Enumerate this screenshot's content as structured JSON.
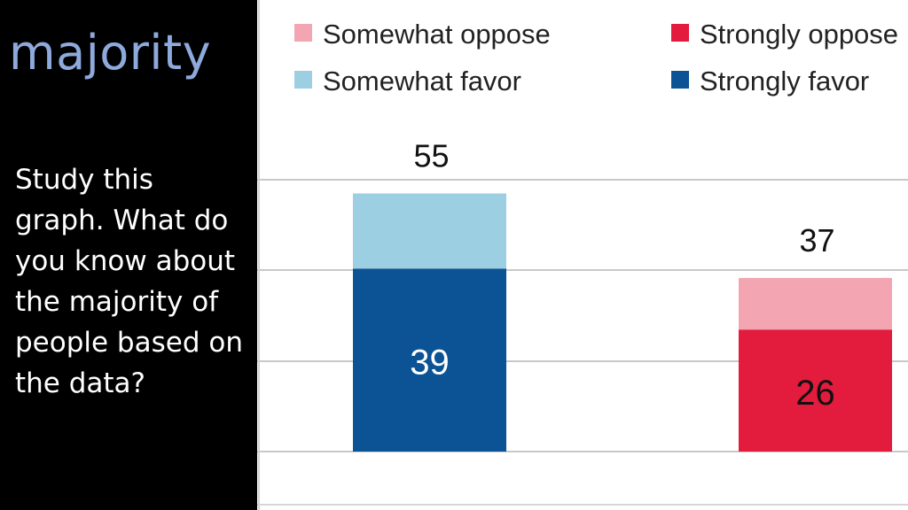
{
  "slide": {
    "title": "majority",
    "body": "Study this graph. What do you know about the majority of people based on the data?"
  },
  "chart_data": {
    "type": "bar",
    "stacked": true,
    "ylim": [
      0,
      60
    ],
    "grid": true,
    "legend_position": "top",
    "legend": [
      {
        "label": "Somewhat oppose",
        "color": "#f4a5b2"
      },
      {
        "label": "Strongly oppose",
        "color": "#e31b3c"
      },
      {
        "label": "Somewhat favor",
        "color": "#9ccfe1"
      },
      {
        "label": "Strongly favor",
        "color": "#0b5394"
      }
    ],
    "bars": [
      {
        "total": 55,
        "total_label": "55",
        "segments": [
          {
            "series": "Strongly favor",
            "value": 39,
            "label": "39",
            "color": "#0b5394",
            "label_color": "#ffffff"
          },
          {
            "series": "Somewhat favor",
            "value": 16,
            "label": "",
            "color": "#9ccfe1",
            "label_color": "#ffffff"
          }
        ]
      },
      {
        "total": 37,
        "total_label": "37",
        "segments": [
          {
            "series": "Strongly oppose",
            "value": 26,
            "label": "26",
            "color": "#e31b3c",
            "label_color": "#111111"
          },
          {
            "series": "Somewhat oppose",
            "value": 11,
            "label": "",
            "color": "#f4a5b2",
            "label_color": "#111111"
          }
        ]
      }
    ]
  }
}
